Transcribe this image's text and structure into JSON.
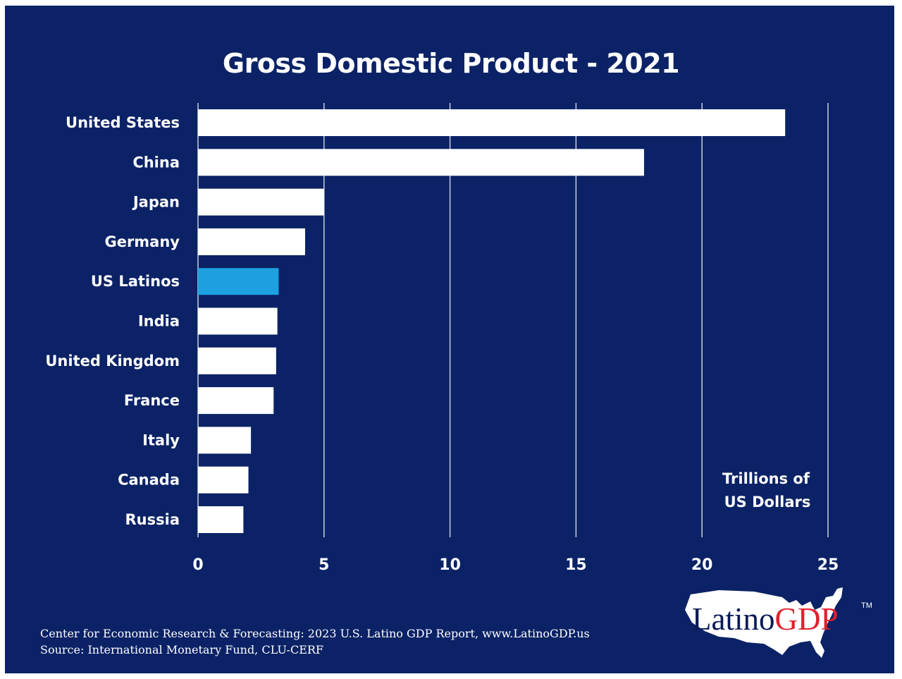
{
  "chart_data": {
    "type": "bar",
    "orientation": "horizontal",
    "title": "Gross Domestic Product - 2021",
    "categories": [
      "United States",
      "China",
      "Japan",
      "Germany",
      "US Latinos",
      "India",
      "United Kingdom",
      "France",
      "Italy",
      "Canada",
      "Russia"
    ],
    "values": [
      23.3,
      17.7,
      5.0,
      4.25,
      3.2,
      3.15,
      3.1,
      3.0,
      2.1,
      2.0,
      1.8
    ],
    "highlight": "US Latinos",
    "xlabel": "Trillions of US Dollars",
    "unit_label_lines": [
      "Trillions  of",
      "US Dollars"
    ],
    "ylabel": "",
    "xlim": [
      0,
      25
    ],
    "xticks": [
      0,
      5,
      10,
      15,
      20,
      25
    ],
    "grid": "vertical",
    "legend": "none",
    "colors": {
      "background": "#0b2266",
      "bar": "#ffffff",
      "highlight": "#1ea0e0",
      "grid": "#c8cde0",
      "text": "#ffffff"
    }
  },
  "footer": {
    "line1": "Center for Economic Research & Forecasting: 2023 U.S. Latino GDP Report, www.LatinoGDP.us",
    "line2": "Source: International Monetary Fund, CLU-CERF"
  },
  "logo": {
    "part1": "Latino",
    "part2": "GDP",
    "tm": "TM"
  }
}
